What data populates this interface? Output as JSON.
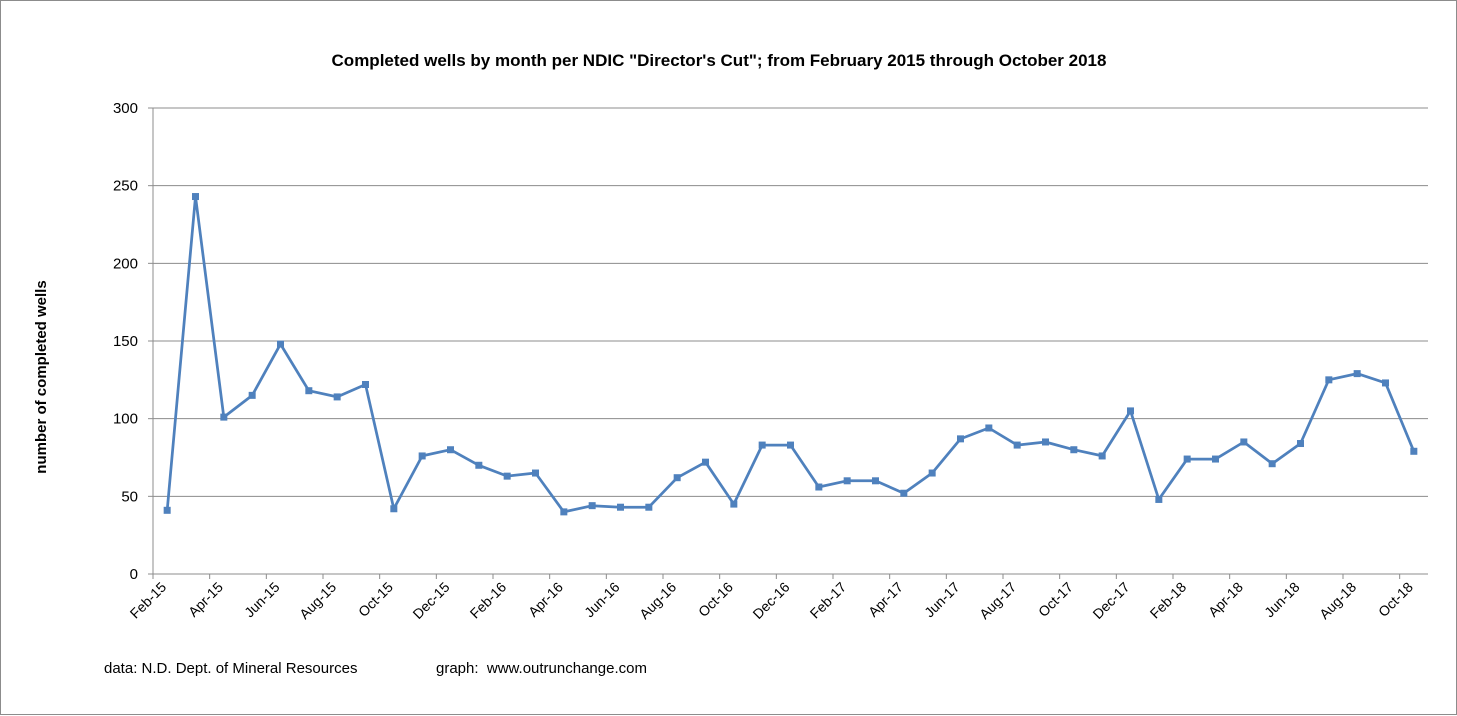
{
  "chart_data": {
    "type": "line",
    "title": "Completed  wells by month per NDIC \"Director's Cut\"; from February 2015 through October 2018",
    "ylabel": "number of completed wells",
    "xlabel": "",
    "ylim": [
      0,
      300
    ],
    "yticks": [
      0,
      50,
      100,
      150,
      200,
      250,
      300
    ],
    "grid": "horizontal",
    "legend": "none",
    "series_color": "#4f81bd",
    "categories": [
      "Feb-15",
      "Mar-15",
      "Apr-15",
      "May-15",
      "Jun-15",
      "Jul-15",
      "Aug-15",
      "Sep-15",
      "Oct-15",
      "Nov-15",
      "Dec-15",
      "Jan-16",
      "Feb-16",
      "Mar-16",
      "Apr-16",
      "May-16",
      "Jun-16",
      "Jul-16",
      "Aug-16",
      "Sep-16",
      "Oct-16",
      "Nov-16",
      "Dec-16",
      "Jan-17",
      "Feb-17",
      "Mar-17",
      "Apr-17",
      "May-17",
      "Jun-17",
      "Jul-17",
      "Aug-17",
      "Sep-17",
      "Oct-17",
      "Nov-17",
      "Dec-17",
      "Jan-18",
      "Feb-18",
      "Mar-18",
      "Apr-18",
      "May-18",
      "Jun-18",
      "Jul-18",
      "Aug-18",
      "Sep-18",
      "Oct-18"
    ],
    "tick_labels": [
      "Feb-15",
      "Apr-15",
      "Jun-15",
      "Aug-15",
      "Oct-15",
      "Dec-15",
      "Feb-16",
      "Apr-16",
      "Jun-16",
      "Aug-16",
      "Oct-16",
      "Dec-16",
      "Feb-17",
      "Apr-17",
      "Jun-17",
      "Aug-17",
      "Oct-17",
      "Dec-17",
      "Feb-18",
      "Apr-18",
      "Jun-18",
      "Aug-18",
      "Oct-18"
    ],
    "series": [
      {
        "values": [
          41,
          243,
          101,
          115,
          148,
          118,
          114,
          122,
          42,
          76,
          80,
          70,
          63,
          65,
          40,
          44,
          43,
          43,
          62,
          72,
          45,
          83,
          83,
          56,
          60,
          60,
          52,
          65,
          87,
          94,
          83,
          85,
          80,
          76,
          105,
          48,
          74,
          74,
          85,
          71,
          84,
          125,
          129,
          123,
          79
        ]
      }
    ]
  },
  "footer": {
    "data_source": "data: N.D. Dept. of Mineral Resources",
    "graph_source": "graph:  www.outrunchange.com"
  }
}
